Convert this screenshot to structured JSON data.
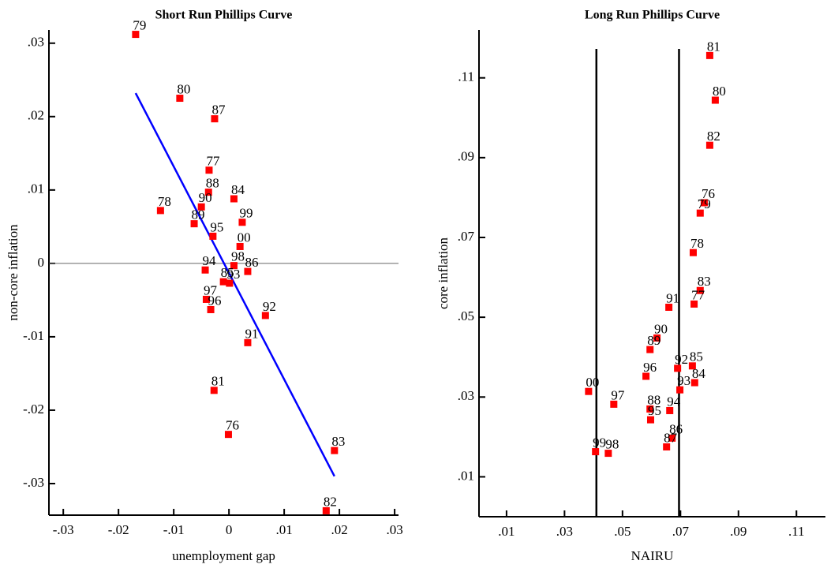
{
  "chart_data": [
    {
      "type": "scatter",
      "title": "Short Run Phillips Curve",
      "x_label": "unemployment gap",
      "y_label": "non-core inflation",
      "xlim": [
        -0.0326,
        0.0307
      ],
      "ylim": [
        -0.0343,
        0.0318
      ],
      "xticks": [
        {
          "value": -0.03,
          "label": "-.03"
        },
        {
          "value": -0.02,
          "label": "-.02"
        },
        {
          "value": -0.01,
          "label": "-.01"
        },
        0,
        {
          "value": 0.01,
          "label": ".01"
        },
        {
          "value": 0.02,
          "label": ".02"
        },
        {
          "value": 0.03,
          "label": ".03"
        }
      ],
      "yticks": [
        {
          "value": -0.03,
          "label": "-.03"
        },
        {
          "value": -0.02,
          "label": "-.02"
        },
        {
          "value": -0.01,
          "label": "-.01"
        },
        0,
        {
          "value": 0.01,
          "label": ".01"
        },
        {
          "value": 0.02,
          "label": ".02"
        },
        {
          "value": 0.03,
          "label": ".03"
        }
      ],
      "hline": 0,
      "fit_line": {
        "color": "#0000ff",
        "x": [
          -0.0169,
          0.0191
        ],
        "y": [
          0.0232,
          -0.029
        ]
      },
      "series": [
        {
          "color": "#ff0000",
          "labels": [
            "79",
            "80",
            "87",
            "77",
            "88",
            "84",
            "78",
            "90",
            "99",
            "89",
            "95",
            "00",
            "94",
            "98",
            "86",
            "85",
            "93",
            "97",
            "96",
            "92",
            "91",
            "81",
            "76",
            "83",
            "82"
          ],
          "x": [
            -0.0169,
            -0.0089,
            -0.0026,
            -0.0036,
            -0.0037,
            0.0009,
            -0.0124,
            -0.005,
            0.0024,
            -0.0063,
            -0.0029,
            0.002,
            -0.0043,
            0.0009,
            0.0034,
            -0.001,
            0.0001,
            -0.0041,
            -0.0033,
            0.0066,
            0.0034,
            -0.0027,
            -0.0001,
            0.0191,
            0.0176
          ],
          "values": [
            0.0312,
            0.0225,
            0.0197,
            0.0127,
            0.0097,
            0.0088,
            0.0072,
            0.0077,
            0.0056,
            0.0054,
            0.0037,
            0.0023,
            -0.0009,
            -0.0003,
            -0.0011,
            -0.0025,
            -0.0027,
            -0.0049,
            -0.0063,
            -0.0071,
            -0.0108,
            -0.0173,
            -0.0233,
            -0.0255,
            -0.0337
          ]
        }
      ]
    },
    {
      "type": "scatter",
      "title": "Long Run Phillips Curve",
      "x_label": "NAIRU",
      "y_label": "core inflation",
      "xlim": [
        0.0005,
        0.12
      ],
      "ylim": [
        0,
        0.122
      ],
      "xticks": [
        {
          "value": 0.01,
          "label": ".01"
        },
        {
          "value": 0.03,
          "label": ".03"
        },
        {
          "value": 0.05,
          "label": ".05"
        },
        {
          "value": 0.07,
          "label": ".07"
        },
        {
          "value": 0.09,
          "label": ".09"
        },
        {
          "value": 0.11,
          "label": ".11"
        }
      ],
      "yticks": [
        {
          "value": 0.01,
          "label": ".01"
        },
        {
          "value": 0.03,
          "label": ".03"
        },
        {
          "value": 0.05,
          "label": ".05"
        },
        {
          "value": 0.07,
          "label": ".07"
        },
        {
          "value": 0.09,
          "label": ".09"
        },
        {
          "value": 0.11,
          "label": ".11"
        }
      ],
      "vlines": [
        0.041,
        0.0695
      ],
      "series": [
        {
          "color": "#ff0000",
          "labels": [
            "81",
            "80",
            "82",
            "76",
            "79",
            "78",
            "83",
            "77",
            "91",
            "90",
            "89",
            "96",
            "92",
            "85",
            "84",
            "93",
            "00",
            "97",
            "88",
            "94",
            "95",
            "86",
            "87",
            "99",
            "98"
          ],
          "x": [
            0.0801,
            0.082,
            0.0801,
            0.0782,
            0.0768,
            0.0744,
            0.0768,
            0.0747,
            0.066,
            0.0619,
            0.0595,
            0.0581,
            0.069,
            0.0741,
            0.0749,
            0.0698,
            0.0383,
            0.047,
            0.0595,
            0.0663,
            0.0597,
            0.0671,
            0.0652,
            0.0407,
            0.0451
          ],
          "values": [
            0.1156,
            0.1044,
            0.0931,
            0.0787,
            0.0761,
            0.0662,
            0.0567,
            0.0533,
            0.0525,
            0.0448,
            0.0419,
            0.0352,
            0.0372,
            0.0378,
            0.0336,
            0.0318,
            0.0314,
            0.0282,
            0.027,
            0.0266,
            0.0243,
            0.0197,
            0.0175,
            0.0163,
            0.0159
          ]
        }
      ]
    }
  ]
}
